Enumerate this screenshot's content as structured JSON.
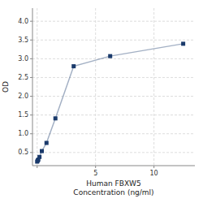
{
  "chart_data": {
    "type": "line",
    "x_label": "Human FBXW5\nConcentration (ng/ml)",
    "y_label": "OD",
    "x": [
      0.0,
      0.05,
      0.1,
      0.2,
      0.4,
      0.8,
      1.5625,
      3.125,
      6.25,
      12.5
    ],
    "values": [
      0.258,
      0.286,
      0.312,
      0.382,
      0.538,
      0.756,
      1.41,
      2.8,
      3.07,
      3.4
    ],
    "color": "#1a3a6b",
    "marker": "square",
    "line_style": "solid",
    "xlim": [
      -0.4,
      13.5
    ],
    "ylim": [
      0.15,
      4.35
    ],
    "xticks": [
      {
        "value": 0,
        "label": null
      },
      5,
      10
    ],
    "yticks": [
      0.5,
      {
        "value": 1.0,
        "label": "1.0"
      },
      1.5,
      {
        "value": 2.0,
        "label": "2.0"
      },
      2.5,
      {
        "value": 3.0,
        "label": "3.0"
      },
      3.5,
      {
        "value": 4.0,
        "label": "4.0"
      }
    ],
    "grid": true
  }
}
